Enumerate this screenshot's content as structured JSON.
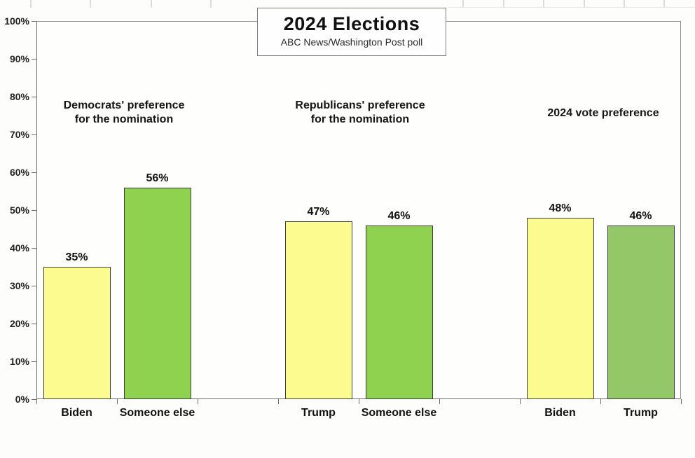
{
  "title": {
    "text": "2024 Elections",
    "subtitle": "ABC News/Washington Post poll"
  },
  "colors": {
    "yellow": "#fbfb90",
    "green_bright": "#8ed24f",
    "green_muted": "#93c768",
    "bar_border": "#3d3d3d",
    "axis": "#6e6e6e",
    "text": "#1a1a1a"
  },
  "chart_data": {
    "type": "bar",
    "title": "2024 Elections",
    "subtitle": "ABC News/Washington Post poll",
    "ylabel": "",
    "xlabel": "",
    "ylim": [
      0,
      100
    ],
    "ytick_step": 10,
    "ytick_labels": [
      "0%",
      "10%",
      "20%",
      "30%",
      "40%",
      "50%",
      "60%",
      "70%",
      "80%",
      "90%",
      "100%"
    ],
    "grid": false,
    "legend": "none",
    "groups": [
      {
        "title_lines": [
          "Democrats' preference",
          "for the nomination"
        ],
        "categories": [
          "Biden",
          "Someone else"
        ],
        "values": [
          35,
          56
        ]
      },
      {
        "title_lines": [
          "Republicans' preference",
          "for the nomination"
        ],
        "categories": [
          "Trump",
          "Someone else"
        ],
        "values": [
          47,
          46
        ]
      },
      {
        "title_lines": [
          "2024 vote preference"
        ],
        "categories": [
          "Biden",
          "Trump"
        ],
        "values": [
          48,
          46
        ]
      }
    ],
    "bars": [
      {
        "group": "Democrats' preference for the nomination",
        "category": "Biden",
        "value": 35,
        "value_label": "35%",
        "color": "yellow",
        "slot": 0
      },
      {
        "group": "Democrats' preference for the nomination",
        "category": "Someone else",
        "value": 56,
        "value_label": "56%",
        "color": "green_bright",
        "slot": 1
      },
      {
        "group": "Republicans' preference for the nomination",
        "category": "Trump",
        "value": 47,
        "value_label": "47%",
        "color": "yellow",
        "slot": 3
      },
      {
        "group": "Republicans' preference for the nomination",
        "category": "Someone else",
        "value": 46,
        "value_label": "46%",
        "color": "green_bright",
        "slot": 4
      },
      {
        "group": "2024 vote preference",
        "category": "Biden",
        "value": 48,
        "value_label": "48%",
        "color": "yellow",
        "slot": 6
      },
      {
        "group": "2024 vote preference",
        "category": "Trump",
        "value": 46,
        "value_label": "46%",
        "color": "green_muted",
        "slot": 7
      }
    ],
    "annotations": [
      {
        "lines": [
          "Democrats' preference",
          "for the nomination"
        ],
        "center_x": 177,
        "top_y": 141
      },
      {
        "lines": [
          "Republicans' preference",
          "for the nomination"
        ],
        "center_x": 514,
        "top_y": 141
      },
      {
        "lines": [
          "2024 vote preference"
        ],
        "center_x": 861,
        "top_y": 152
      }
    ]
  }
}
